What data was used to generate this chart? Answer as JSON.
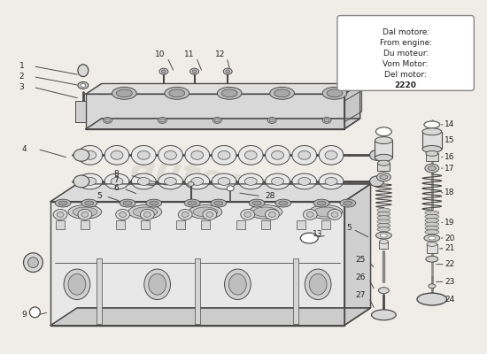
{
  "bg": "#f0ede8",
  "lc": "#4a4a4a",
  "tc": "#222222",
  "watermark": "autosparcs",
  "wm_color": "#ccc9c0",
  "info_lines": [
    "Dal motore:",
    "From engine:",
    "Du moteur:",
    "Vom Motor:",
    "Del motor:",
    "2220"
  ],
  "fs": 6.5,
  "fig_w": 5.5,
  "fig_h": 4.0,
  "dpi": 100
}
